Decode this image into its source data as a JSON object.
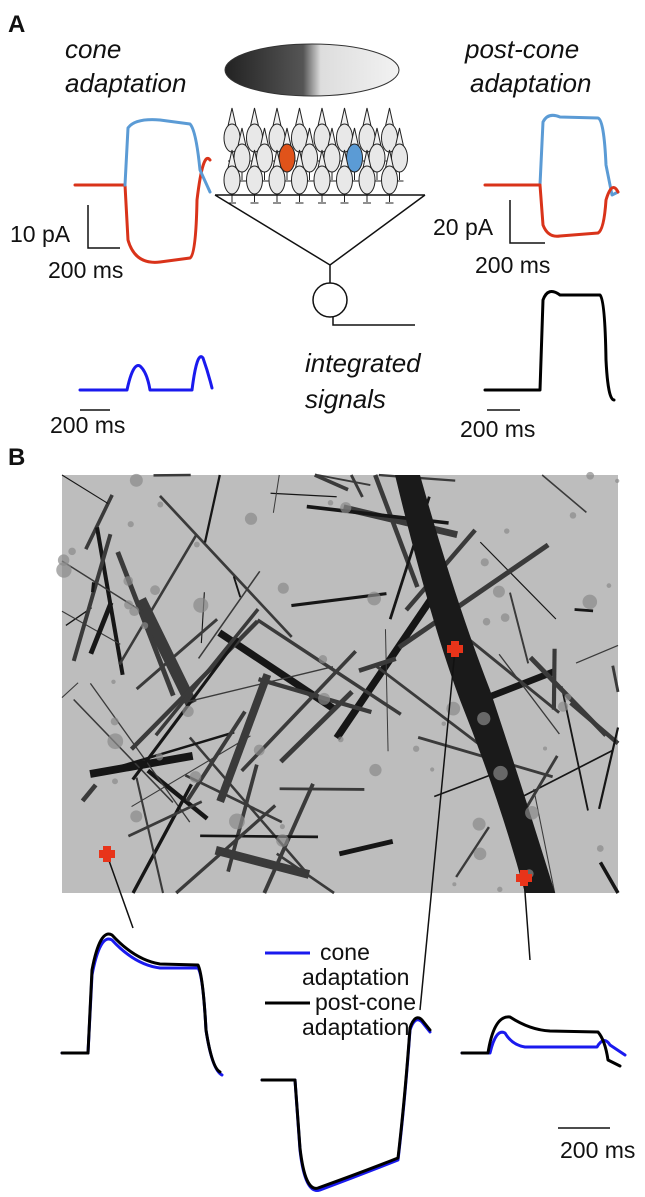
{
  "panel_a": {
    "label": "A",
    "cone_title": [
      "cone",
      "adaptation"
    ],
    "post_cone_title": [
      "post-cone",
      "adaptation"
    ],
    "left_scale": {
      "y": "10 pA",
      "x": "200 ms"
    },
    "right_scale": {
      "y": "20 pA",
      "x": "200 ms"
    },
    "left_integrated_scale": "200 ms",
    "right_integrated_scale": "200 ms",
    "center_label": [
      "integrated",
      "signals"
    ]
  },
  "panel_b": {
    "label": "B",
    "legend": [
      {
        "lines": [
          "cone",
          "adaptation"
        ]
      },
      {
        "lines": [
          "post-cone",
          "adaptation"
        ]
      }
    ],
    "scale": "200 ms"
  }
}
